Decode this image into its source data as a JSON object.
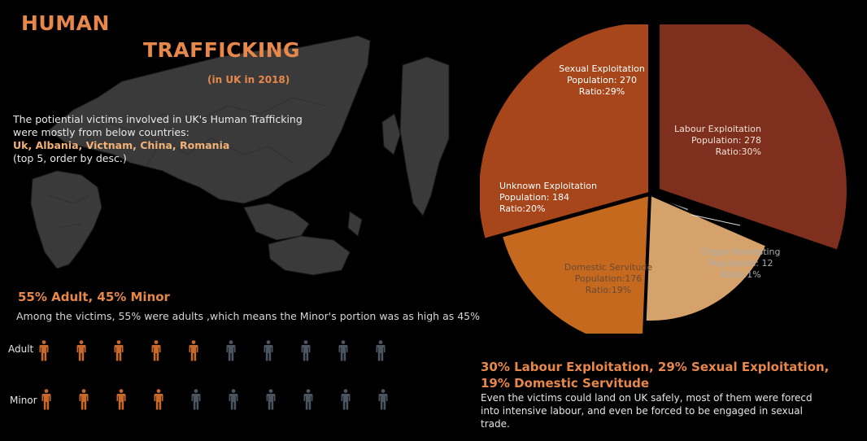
{
  "header": {
    "title_line1": "HUMAN",
    "title_line2": "TRAFFICKING",
    "subtitle": "(in UK in 2018)"
  },
  "intro": {
    "text": "The potiential victims involved in UK's Human Trafficking were mostly from below countries:",
    "countries": "Uk, Albania, Victnam, China, Romania",
    "note": "(top 5, order by desc.)"
  },
  "age": {
    "headline": "55% Adult, 45% Minor",
    "description": "Among the victims, 55% were adults ,which means the Minor's portion was as high as 45%",
    "rows": [
      {
        "label": "Adult",
        "filled": 5,
        "total": 10
      },
      {
        "label": "Minor",
        "filled": 4,
        "total": 10
      }
    ],
    "colors": {
      "filled": "#c8682a",
      "empty": "#4a5560"
    }
  },
  "chart_data": {
    "type": "pie",
    "slices": [
      {
        "name": "Labour Exploitation",
        "population": 278,
        "ratio": 30,
        "label_lines": [
          "Labour Exploitation",
          "Population: 278",
          "Ratio:30%"
        ],
        "color": "#7f2f1d",
        "text_color": "#f0e0d6"
      },
      {
        "name": "Organ Harvesting",
        "population": 12,
        "ratio": 1,
        "label_lines": [
          "Organ Harvesting",
          "Population: 12",
          "Ratio:1%"
        ],
        "color": "#8e9598",
        "text_color": "#a8adb0"
      },
      {
        "name": "Domestic Servitude",
        "population": 176,
        "ratio": 19,
        "label_lines": [
          "Domestic Servitude",
          "Population:176",
          "Ratio:19%"
        ],
        "color": "#d6a26b",
        "text_color": "#6a4a34"
      },
      {
        "name": "Unknown Exploitation",
        "population": 184,
        "ratio": 20,
        "label_lines": [
          "Unknown Exploitation",
          "Population: 184",
          "Ratio:20%"
        ],
        "color": "#c5691f",
        "text_color": "#ffffff"
      },
      {
        "name": "Sexual Exploitation",
        "population": 270,
        "ratio": 29,
        "label_lines": [
          "Sexual Exploitation",
          "Population: 270",
          "Ratio:29%"
        ],
        "color": "#a8461b",
        "text_color": "#ffffff"
      }
    ]
  },
  "summary": {
    "headline": "30% Labour Exploitation, 29% Sexual Exploitation, 19% Domestic Servitude",
    "description": "Even the victims could land on UK safely, most of them were forecd into intensive labour, and even be forced to be engaged in sexual trade."
  }
}
